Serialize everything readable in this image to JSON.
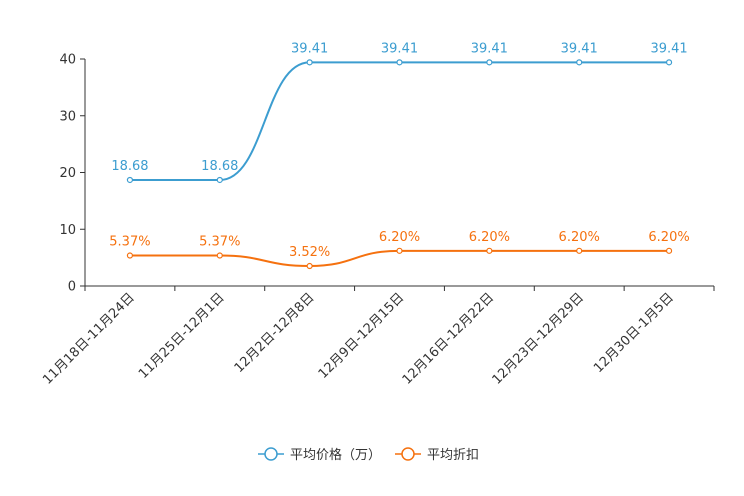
{
  "chart_data": {
    "type": "line",
    "title": "",
    "xlabel": "",
    "ylabel": "",
    "ylim": [
      0,
      40
    ],
    "yticks": [
      0,
      10,
      20,
      30,
      40
    ],
    "grid": false,
    "legend_position": "bottom",
    "categories": [
      "11月18日-11月24日",
      "11月25日-12月1日",
      "12月2日-12月8日",
      "12月9日-12月15日",
      "12月16日-12月22日",
      "12月23日-12月29日",
      "12月30日-1月5日"
    ],
    "series": [
      {
        "name": "平均价格（万）",
        "color": "#3c9dd0",
        "values": [
          18.68,
          18.68,
          39.41,
          39.41,
          39.41,
          39.41,
          39.41
        ],
        "labels": [
          "18.68",
          "18.68",
          "39.41",
          "39.41",
          "39.41",
          "39.41",
          "39.41"
        ]
      },
      {
        "name": "平均折扣",
        "color": "#f5710f",
        "values": [
          5.37,
          5.37,
          3.52,
          6.2,
          6.2,
          6.2,
          6.2
        ],
        "labels": [
          "5.37%",
          "5.37%",
          "3.52%",
          "6.20%",
          "6.20%",
          "6.20%",
          "6.20%"
        ]
      }
    ]
  }
}
